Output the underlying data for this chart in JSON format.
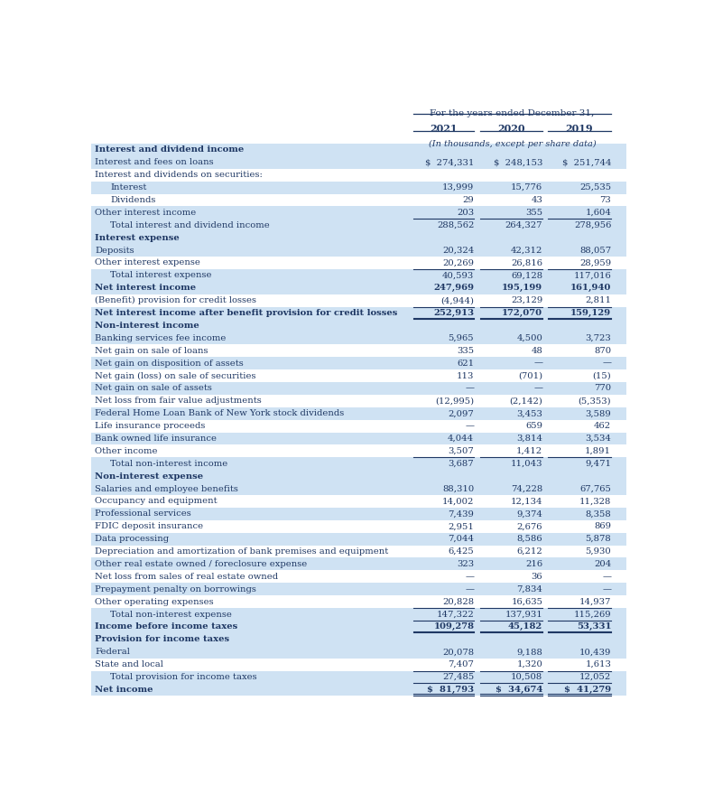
{
  "title_header": "For the years ended December 31,",
  "subtitle_header": "(In thousands, except per share data)",
  "col_headers": [
    "2021",
    "2020",
    "2019"
  ],
  "bg_color_light": "#cfe2f3",
  "bg_color_white": "#ffffff",
  "text_color": "#1f3864",
  "rows": [
    {
      "label": "Interest and dividend income",
      "v1": "",
      "v2": "",
      "v3": "",
      "style": "section_header",
      "indent": 0
    },
    {
      "label": "Interest and fees on loans",
      "v1": "$  274,331",
      "v2": "$  248,153",
      "v3": "$  251,744",
      "style": "normal",
      "indent": 0
    },
    {
      "label": "Interest and dividends on securities:",
      "v1": "",
      "v2": "",
      "v3": "",
      "style": "normal",
      "indent": 0
    },
    {
      "label": "Interest",
      "v1": "13,999",
      "v2": "15,776",
      "v3": "25,535",
      "style": "normal",
      "indent": 1
    },
    {
      "label": "Dividends",
      "v1": "29",
      "v2": "43",
      "v3": "73",
      "style": "normal",
      "indent": 1
    },
    {
      "label": "Other interest income",
      "v1": "203",
      "v2": "355",
      "v3": "1,604",
      "style": "normal",
      "indent": 0
    },
    {
      "label": "Total interest and dividend income",
      "v1": "288,562",
      "v2": "264,327",
      "v3": "278,956",
      "style": "total",
      "indent": 1
    },
    {
      "label": "Interest expense",
      "v1": "",
      "v2": "",
      "v3": "",
      "style": "section_header",
      "indent": 0
    },
    {
      "label": "Deposits",
      "v1": "20,324",
      "v2": "42,312",
      "v3": "88,057",
      "style": "normal",
      "indent": 0
    },
    {
      "label": "Other interest expense",
      "v1": "20,269",
      "v2": "26,816",
      "v3": "28,959",
      "style": "normal",
      "indent": 0
    },
    {
      "label": "Total interest expense",
      "v1": "40,593",
      "v2": "69,128",
      "v3": "117,016",
      "style": "total",
      "indent": 1
    },
    {
      "label": "Net interest income",
      "v1": "247,969",
      "v2": "195,199",
      "v3": "161,940",
      "style": "bold_normal",
      "indent": 0
    },
    {
      "label": "(Benefit) provision for credit losses",
      "v1": "(4,944)",
      "v2": "23,129",
      "v3": "2,811",
      "style": "normal",
      "indent": 0
    },
    {
      "label": "Net interest income after benefit provision for credit losses",
      "v1": "252,913",
      "v2": "172,070",
      "v3": "159,129",
      "style": "bold_total",
      "indent": 0
    },
    {
      "label": "Non-interest income",
      "v1": "",
      "v2": "",
      "v3": "",
      "style": "section_header",
      "indent": 0
    },
    {
      "label": "Banking services fee income",
      "v1": "5,965",
      "v2": "4,500",
      "v3": "3,723",
      "style": "normal",
      "indent": 0
    },
    {
      "label": "Net gain on sale of loans",
      "v1": "335",
      "v2": "48",
      "v3": "870",
      "style": "normal",
      "indent": 0
    },
    {
      "label": "Net gain on disposition of assets",
      "v1": "621",
      "v2": "—",
      "v3": "—",
      "style": "normal",
      "indent": 0
    },
    {
      "label": "Net gain (loss) on sale of securities",
      "v1": "113",
      "v2": "(701)",
      "v3": "(15)",
      "style": "normal",
      "indent": 0
    },
    {
      "label": "Net gain on sale of assets",
      "v1": "—",
      "v2": "—",
      "v3": "770",
      "style": "normal",
      "indent": 0
    },
    {
      "label": "Net loss from fair value adjustments",
      "v1": "(12,995)",
      "v2": "(2,142)",
      "v3": "(5,353)",
      "style": "normal",
      "indent": 0
    },
    {
      "label": "Federal Home Loan Bank of New York stock dividends",
      "v1": "2,097",
      "v2": "3,453",
      "v3": "3,589",
      "style": "normal",
      "indent": 0
    },
    {
      "label": "Life insurance proceeds",
      "v1": "—",
      "v2": "659",
      "v3": "462",
      "style": "normal",
      "indent": 0
    },
    {
      "label": "Bank owned life insurance",
      "v1": "4,044",
      "v2": "3,814",
      "v3": "3,534",
      "style": "normal",
      "indent": 0
    },
    {
      "label": "Other income",
      "v1": "3,507",
      "v2": "1,412",
      "v3": "1,891",
      "style": "normal",
      "indent": 0
    },
    {
      "label": "Total non-interest income",
      "v1": "3,687",
      "v2": "11,043",
      "v3": "9,471",
      "style": "total",
      "indent": 1
    },
    {
      "label": "Non-interest expense",
      "v1": "",
      "v2": "",
      "v3": "",
      "style": "section_header",
      "indent": 0
    },
    {
      "label": "Salaries and employee benefits",
      "v1": "88,310",
      "v2": "74,228",
      "v3": "67,765",
      "style": "normal",
      "indent": 0
    },
    {
      "label": "Occupancy and equipment",
      "v1": "14,002",
      "v2": "12,134",
      "v3": "11,328",
      "style": "normal",
      "indent": 0
    },
    {
      "label": "Professional services",
      "v1": "7,439",
      "v2": "9,374",
      "v3": "8,358",
      "style": "normal",
      "indent": 0
    },
    {
      "label": "FDIC deposit insurance",
      "v1": "2,951",
      "v2": "2,676",
      "v3": "869",
      "style": "normal",
      "indent": 0
    },
    {
      "label": "Data processing",
      "v1": "7,044",
      "v2": "8,586",
      "v3": "5,878",
      "style": "normal",
      "indent": 0
    },
    {
      "label": "Depreciation and amortization of bank premises and equipment",
      "v1": "6,425",
      "v2": "6,212",
      "v3": "5,930",
      "style": "normal",
      "indent": 0
    },
    {
      "label": "Other real estate owned / foreclosure expense",
      "v1": "323",
      "v2": "216",
      "v3": "204",
      "style": "normal",
      "indent": 0
    },
    {
      "label": "Net loss from sales of real estate owned",
      "v1": "—",
      "v2": "36",
      "v3": "—",
      "style": "normal",
      "indent": 0
    },
    {
      "label": "Prepayment penalty on borrowings",
      "v1": "—",
      "v2": "7,834",
      "v3": "—",
      "style": "normal",
      "indent": 0
    },
    {
      "label": "Other operating expenses",
      "v1": "20,828",
      "v2": "16,635",
      "v3": "14,937",
      "style": "normal",
      "indent": 0
    },
    {
      "label": "Total non-interest expense",
      "v1": "147,322",
      "v2": "137,931",
      "v3": "115,269",
      "style": "total",
      "indent": 1
    },
    {
      "label": "Income before income taxes",
      "v1": "109,278",
      "v2": "45,182",
      "v3": "53,331",
      "style": "bold_total",
      "indent": 0
    },
    {
      "label": "Provision for income taxes",
      "v1": "",
      "v2": "",
      "v3": "",
      "style": "section_header",
      "indent": 0
    },
    {
      "label": "Federal",
      "v1": "20,078",
      "v2": "9,188",
      "v3": "10,439",
      "style": "normal",
      "indent": 0
    },
    {
      "label": "State and local",
      "v1": "7,407",
      "v2": "1,320",
      "v3": "1,613",
      "style": "normal",
      "indent": 0
    },
    {
      "label": "Total provision for income taxes",
      "v1": "27,485",
      "v2": "10,508",
      "v3": "12,052",
      "style": "total",
      "indent": 1
    },
    {
      "label": "Net income",
      "v1": "$  81,793",
      "v2": "$  34,674",
      "v3": "$  41,279",
      "style": "bold_total_dollar",
      "indent": 0
    }
  ],
  "row_bgs": [
    "light",
    "light",
    "white",
    "light",
    "white",
    "light",
    "light",
    "light",
    "light",
    "white",
    "light",
    "light",
    "white",
    "light",
    "light",
    "light",
    "white",
    "light",
    "white",
    "light",
    "white",
    "light",
    "white",
    "light",
    "white",
    "light",
    "light",
    "light",
    "white",
    "light",
    "white",
    "light",
    "white",
    "light",
    "white",
    "light",
    "white",
    "light",
    "light",
    "light",
    "light",
    "white",
    "light",
    "light"
  ]
}
